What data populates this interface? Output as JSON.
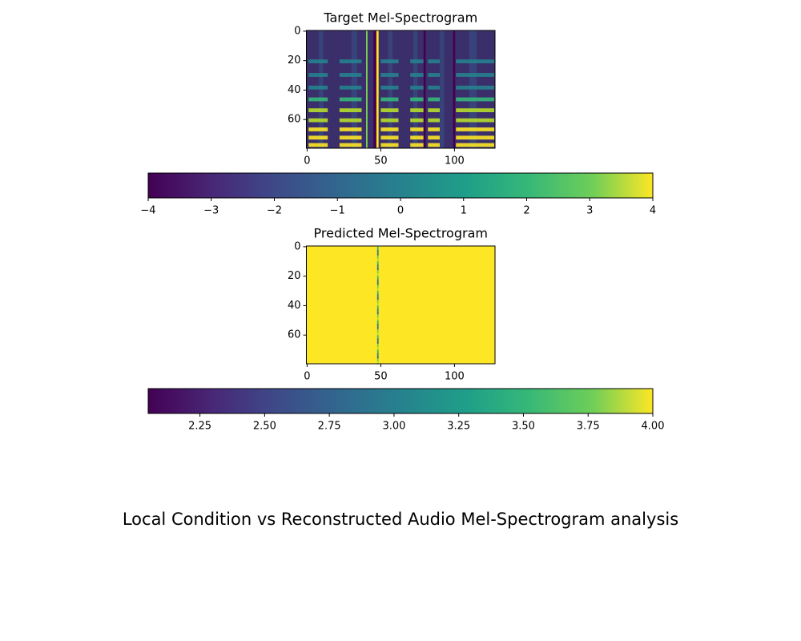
{
  "title": "Local Condition vs Reconstructed Audio Mel-Spectrogram analysis",
  "chart_data": [
    {
      "type": "heatmap",
      "title": "Target Mel-Spectrogram",
      "xlim": [
        -0.5,
        127.5
      ],
      "ylim": [
        79.5,
        -0.5
      ],
      "xticks": [
        0,
        50,
        100
      ],
      "yticks": [
        0,
        20,
        40,
        60
      ],
      "colorbar": {
        "lim": [
          -4,
          4
        ],
        "ticks": [
          {
            "value": -4,
            "label": "−4"
          },
          {
            "value": -3,
            "label": "−3"
          },
          {
            "value": -2,
            "label": "−2"
          },
          {
            "value": -1,
            "label": "−1"
          },
          0,
          1,
          2,
          3,
          4
        ]
      }
    },
    {
      "type": "heatmap",
      "title": "Predicted Mel-Spectrogram",
      "xlim": [
        -0.5,
        127.5
      ],
      "ylim": [
        79.5,
        -0.5
      ],
      "xticks": [
        0,
        50,
        100
      ],
      "yticks": [
        0,
        20,
        40,
        60
      ],
      "colorbar": {
        "lim": [
          2.05,
          4.0
        ],
        "ticks": [
          {
            "value": 2.25,
            "label": "2.25"
          },
          {
            "value": 2.5,
            "label": "2.50"
          },
          {
            "value": 2.75,
            "label": "2.75"
          },
          {
            "value": 3.0,
            "label": "3.00"
          },
          {
            "value": 3.25,
            "label": "3.25"
          },
          {
            "value": 3.5,
            "label": "3.50"
          },
          {
            "value": 3.75,
            "label": "3.75"
          },
          {
            "value": 4.0,
            "label": "4.00"
          }
        ]
      }
    }
  ]
}
